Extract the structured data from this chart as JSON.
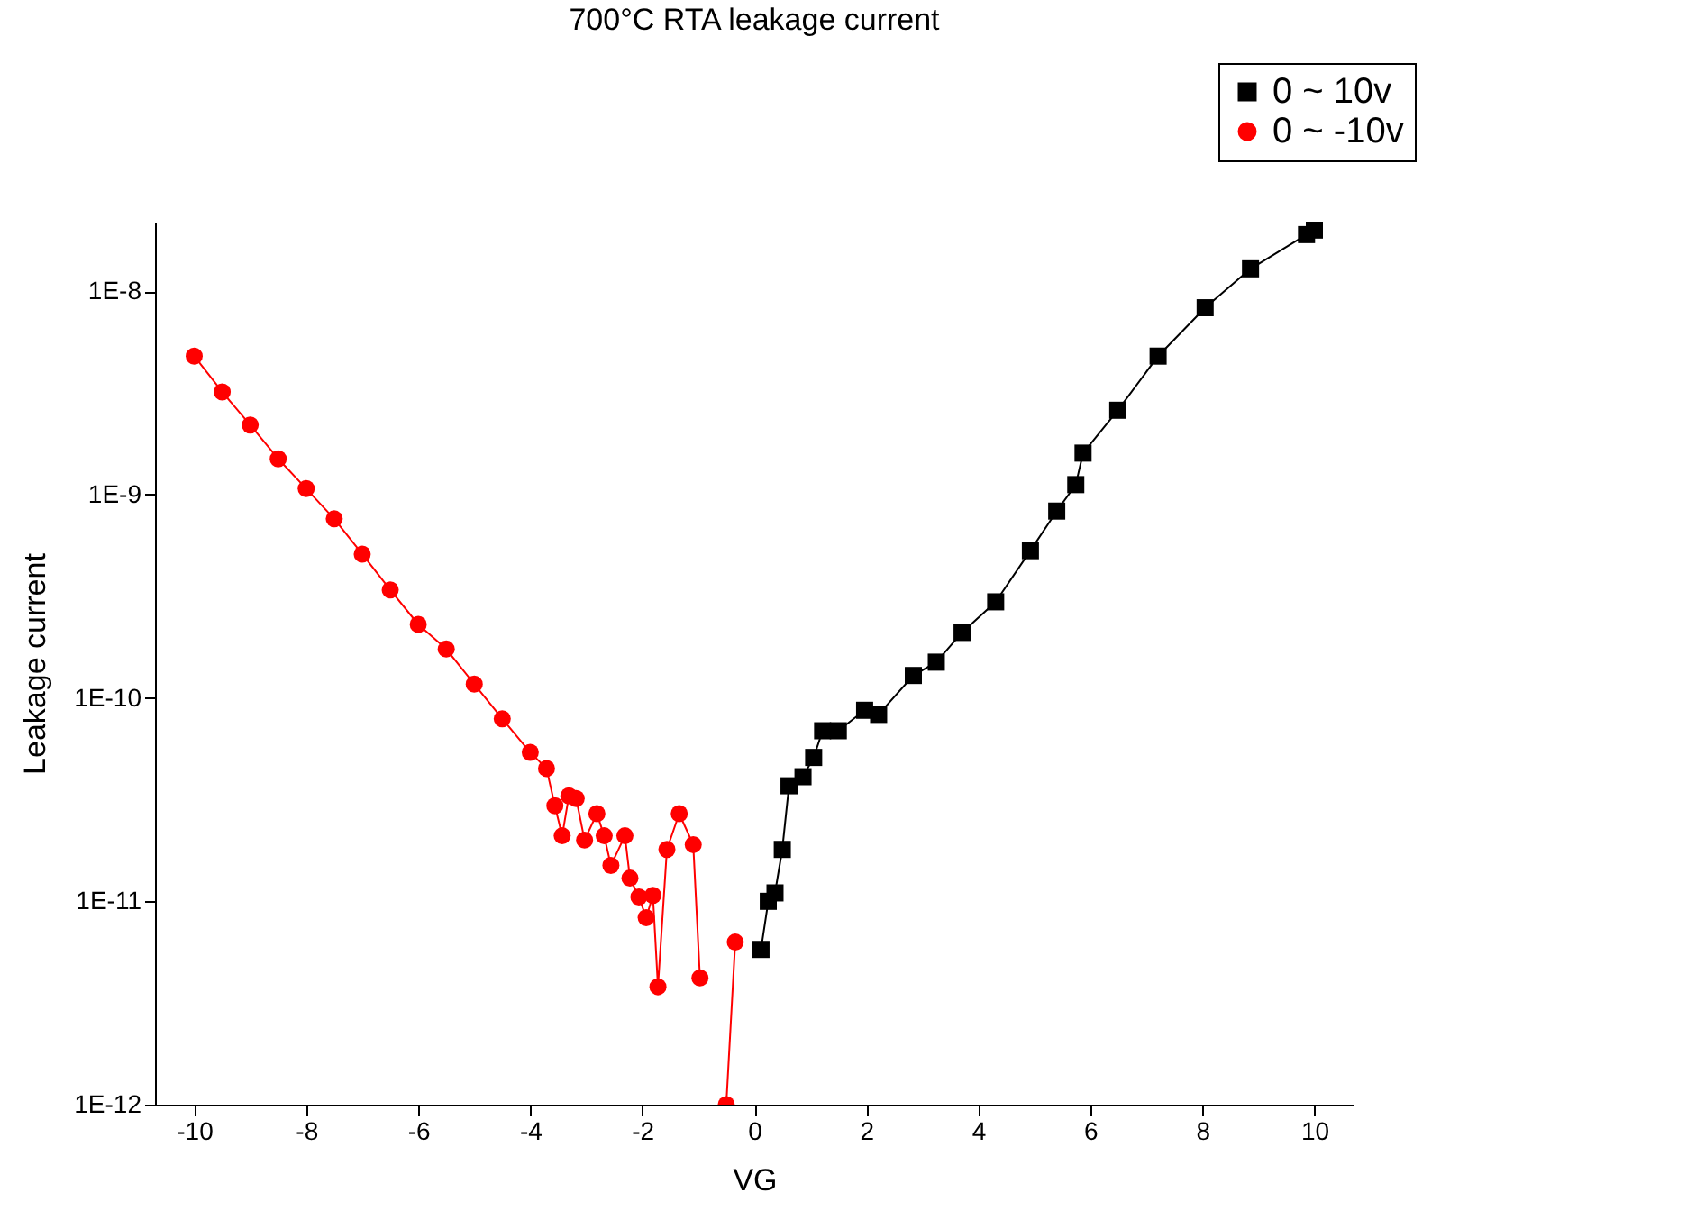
{
  "chart_data": {
    "type": "line",
    "title": "700°C RTA leakage current",
    "xlabel": "VG",
    "ylabel": "Leakage current",
    "log": "y",
    "xlim": [
      -10.7,
      10.7
    ],
    "xticks": [
      -10,
      -8,
      -6,
      -4,
      -2,
      0,
      2,
      4,
      6,
      8,
      10
    ],
    "ylim": [
      1e-12,
      2.2e-08
    ],
    "yticks": [
      {
        "value": 1e-12,
        "label": "1E-12"
      },
      {
        "value": 1e-11,
        "label": "1E-11"
      },
      {
        "value": 1e-10,
        "label": "1E-10"
      },
      {
        "value": 1e-09,
        "label": "1E-9"
      },
      {
        "value": 1e-08,
        "label": "1E-8"
      }
    ],
    "grid": false,
    "legend": "top right",
    "line_style": "solid",
    "series": [
      {
        "name": "0 ~ 10v",
        "color": "#000000",
        "marker": "square",
        "x": [
          0.12,
          0.25,
          0.37,
          0.5,
          0.62,
          0.87,
          1.06,
          1.22,
          1.5,
          1.97,
          2.22,
          2.84,
          3.25,
          3.71,
          4.31,
          4.93,
          5.4,
          5.74,
          5.87,
          6.49,
          7.21,
          8.05,
          8.86,
          9.86,
          10
        ],
        "values": [
          5.8e-12,
          1e-11,
          1.1e-11,
          1.8e-11,
          3.7e-11,
          4.1e-11,
          5.1e-11,
          6.9e-11,
          6.9e-11,
          8.7e-11,
          8.3e-11,
          1.29e-10,
          1.5e-10,
          2.1e-10,
          2.97e-10,
          5.3e-10,
          8.3e-10,
          1.12e-09,
          1.6e-09,
          2.6e-09,
          4.8e-09,
          8.3e-09,
          1.29e-08,
          1.9e-08,
          2e-08
        ]
      },
      {
        "name": "0 ~ -10v",
        "color": "#ff0000",
        "marker": "circle",
        "x": [
          -10,
          -9.5,
          -9,
          -8.5,
          -8,
          -7.5,
          -7,
          -6.5,
          -6,
          -5.5,
          -5,
          -4.5,
          -4,
          -3.71,
          -3.56,
          -3.43,
          -3.31,
          -3.18,
          -3.03,
          -2.81,
          -2.68,
          -2.56,
          -2.31,
          -2.22,
          -2.06,
          -1.93,
          -1.81,
          -1.72,
          -1.56,
          -1.34,
          -1.09,
          -0.97,
          -0.75,
          -0.5,
          -0.34
        ],
        "values": [
          4.8e-09,
          3.2e-09,
          2.2e-09,
          1.5e-09,
          1.07e-09,
          7.6e-10,
          5.1e-10,
          3.4e-10,
          2.3e-10,
          1.74e-10,
          1.17e-10,
          7.9e-11,
          5.4e-11,
          4.5e-11,
          2.95e-11,
          2.1e-11,
          3.3e-11,
          3.2e-11,
          2e-11,
          2.7e-11,
          2.1e-11,
          1.5e-11,
          2.1e-11,
          1.3e-11,
          1.05e-11,
          8.3e-12,
          1.07e-11,
          3.8e-12,
          1.8e-11,
          2.7e-11,
          1.9e-11,
          4.2e-12,
          null,
          1e-12,
          6.3e-12
        ]
      }
    ]
  }
}
